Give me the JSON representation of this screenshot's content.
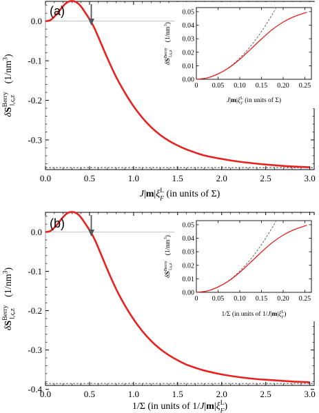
{
  "chart_data": [
    {
      "type": "line",
      "panel_label": "(a)",
      "xlabel": "J|m|ξ_F^L (in units of Σ)",
      "ylabel": "δS^Berry_{l,ς,z} (1/nm^3)",
      "xlim": [
        0,
        3.05
      ],
      "ylim": [
        -0.375,
        0.05
      ],
      "x_ticks": [
        "0.0",
        "0.5",
        "1.0",
        "1.5",
        "2.0",
        "2.5",
        "3.0"
      ],
      "y_ticks": [
        "0.0",
        "-0.1",
        "-0.2",
        "-0.3"
      ],
      "arrow_x": 0.52,
      "asymptote_y": -0.37,
      "series": [
        {
          "color": "#e8211f",
          "x": [
            0.0,
            0.05,
            0.1,
            0.15,
            0.2,
            0.25,
            0.3,
            0.35,
            0.4,
            0.45,
            0.5,
            0.55,
            0.6,
            0.7,
            0.8,
            0.9,
            1.0,
            1.1,
            1.2,
            1.3,
            1.4,
            1.5,
            1.6,
            1.7,
            1.8,
            2.0,
            2.2,
            2.4,
            2.6,
            2.8,
            3.0
          ],
          "y": [
            0.0,
            0.002,
            0.011,
            0.024,
            0.038,
            0.048,
            0.051,
            0.048,
            0.038,
            0.022,
            0.005,
            -0.015,
            -0.04,
            -0.092,
            -0.14,
            -0.18,
            -0.215,
            -0.244,
            -0.268,
            -0.287,
            -0.302,
            -0.314,
            -0.324,
            -0.332,
            -0.339,
            -0.348,
            -0.355,
            -0.36,
            -0.364,
            -0.367,
            -0.369
          ]
        }
      ],
      "inset": {
        "xlabel": "J|m|ξ_F^L (in units of Σ)",
        "ylabel": "δS^Berry_{l,ς,z} (1/nm^3)",
        "xlim": [
          0,
          0.265
        ],
        "ylim": [
          0,
          0.053
        ],
        "x_ticks": [
          "0",
          "0.05",
          "0.10",
          "0.15",
          "0.20",
          "0.25"
        ],
        "y_ticks": [
          "0.00",
          "0.01",
          "0.02",
          "0.03",
          "0.04",
          "0.05"
        ],
        "x": [
          0.0,
          0.025,
          0.05,
          0.075,
          0.1,
          0.125,
          0.15,
          0.175,
          0.2,
          0.225,
          0.25,
          0.255
        ],
        "y": [
          0.0,
          0.001,
          0.004,
          0.0085,
          0.0148,
          0.0222,
          0.0298,
          0.0368,
          0.0423,
          0.0463,
          0.0491,
          0.0495
        ],
        "approx_x": [
          0.0,
          0.025,
          0.05,
          0.075,
          0.1,
          0.125,
          0.15,
          0.175,
          0.183
        ],
        "approx_y": [
          0.0,
          0.001,
          0.0039,
          0.0088,
          0.0157,
          0.0245,
          0.0353,
          0.048,
          0.0525
        ]
      }
    },
    {
      "type": "line",
      "panel_label": "(b)",
      "xlabel": "1/Σ (in units of 1/J|m|ξ_F^L)",
      "ylabel": "δS^Berry_{l,ς,z} (1/nm^3)",
      "xlim": [
        0,
        3.05
      ],
      "ylim": [
        -0.39,
        0.05
      ],
      "x_ticks": [
        "0.0",
        "0.5",
        "1.0",
        "1.5",
        "2.0",
        "2.5",
        "3.0"
      ],
      "y_ticks": [
        "0.0",
        "-0.1",
        "-0.2",
        "-0.3",
        "-0.4"
      ],
      "arrow_x": 0.52,
      "asymptote_y": -0.385,
      "series": [
        {
          "color": "#e8211f",
          "x": [
            0.0,
            0.05,
            0.1,
            0.15,
            0.2,
            0.25,
            0.3,
            0.35,
            0.4,
            0.45,
            0.5,
            0.55,
            0.6,
            0.7,
            0.8,
            0.9,
            1.0,
            1.1,
            1.2,
            1.3,
            1.4,
            1.5,
            1.6,
            1.7,
            1.8,
            2.0,
            2.2,
            2.4,
            2.6,
            2.8,
            3.0
          ],
          "y": [
            0.0,
            0.002,
            0.011,
            0.024,
            0.038,
            0.048,
            0.051,
            0.048,
            0.038,
            0.022,
            0.005,
            -0.015,
            -0.04,
            -0.094,
            -0.144,
            -0.186,
            -0.222,
            -0.252,
            -0.277,
            -0.297,
            -0.313,
            -0.326,
            -0.337,
            -0.345,
            -0.352,
            -0.362,
            -0.369,
            -0.374,
            -0.377,
            -0.38,
            -0.382
          ]
        }
      ],
      "inset": {
        "xlabel": "1/Σ (in units of 1/J|m|ξ_F^L)",
        "ylabel": "δS^Berry_{l,ς,z} (1/nm^3)",
        "xlim": [
          0,
          0.265
        ],
        "ylim": [
          0,
          0.053
        ],
        "x_ticks": [
          "0",
          "0.05",
          "0.10",
          "0.15",
          "0.20",
          "0.25"
        ],
        "y_ticks": [
          "0.00",
          "0.01",
          "0.02",
          "0.03",
          "0.04",
          "0.05"
        ],
        "x": [
          0.0,
          0.025,
          0.05,
          0.075,
          0.1,
          0.125,
          0.15,
          0.175,
          0.2,
          0.225,
          0.25,
          0.255
        ],
        "y": [
          0.0,
          0.001,
          0.004,
          0.0085,
          0.0148,
          0.0222,
          0.0298,
          0.0368,
          0.0423,
          0.0463,
          0.0491,
          0.0495
        ],
        "approx_x": [
          0.0,
          0.025,
          0.05,
          0.075,
          0.1,
          0.125,
          0.15,
          0.175,
          0.183
        ],
        "approx_y": [
          0.0,
          0.001,
          0.0039,
          0.0088,
          0.0157,
          0.0245,
          0.0353,
          0.048,
          0.0525
        ]
      }
    }
  ]
}
